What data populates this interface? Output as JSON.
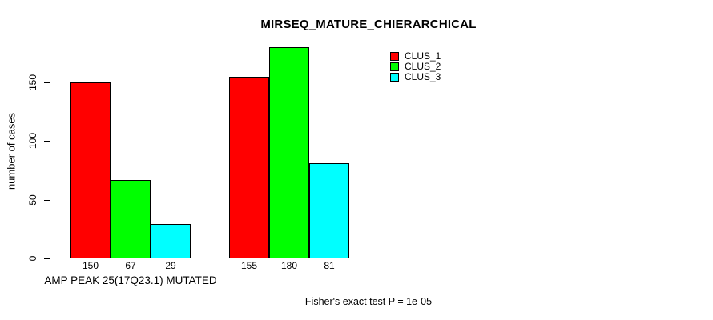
{
  "title": "MIRSEQ_MATURE_CHIERARCHICAL",
  "footer": "Fisher's exact test P = 1e-05",
  "x_axis_label": "AMP PEAK 25(17Q23.1) MUTATED",
  "y_axis": {
    "label": "number of cases",
    "ticks": [
      0,
      50,
      100,
      150
    ]
  },
  "legend": [
    {
      "label": "CLUS_1",
      "color": "#FF0000"
    },
    {
      "label": "CLUS_2",
      "color": "#00FF00"
    },
    {
      "label": "CLUS_3",
      "color": "#00FFFF"
    }
  ],
  "chart_data": {
    "type": "bar",
    "title": "MIRSEQ_MATURE_CHIERARCHICAL",
    "xlabel": "AMP PEAK 25(17Q23.1) MUTATED",
    "ylabel": "number of cases",
    "ylim": [
      0,
      180
    ],
    "yticks": [
      0,
      50,
      100,
      150
    ],
    "grid": false,
    "legend_position": "top-right",
    "groups": [
      "AMP PEAK 25(17Q23.1) MUTATED",
      ""
    ],
    "series": [
      {
        "name": "CLUS_1",
        "color": "#FF0000",
        "values": [
          150,
          155
        ]
      },
      {
        "name": "CLUS_2",
        "color": "#00FF00",
        "values": [
          67,
          180
        ]
      },
      {
        "name": "CLUS_3",
        "color": "#00FFFF",
        "values": [
          29,
          81
        ]
      }
    ],
    "bar_value_labels": [
      [
        150,
        67,
        29
      ],
      [
        155,
        180,
        81
      ]
    ],
    "annotation": "Fisher's exact test P = 1e-05"
  }
}
